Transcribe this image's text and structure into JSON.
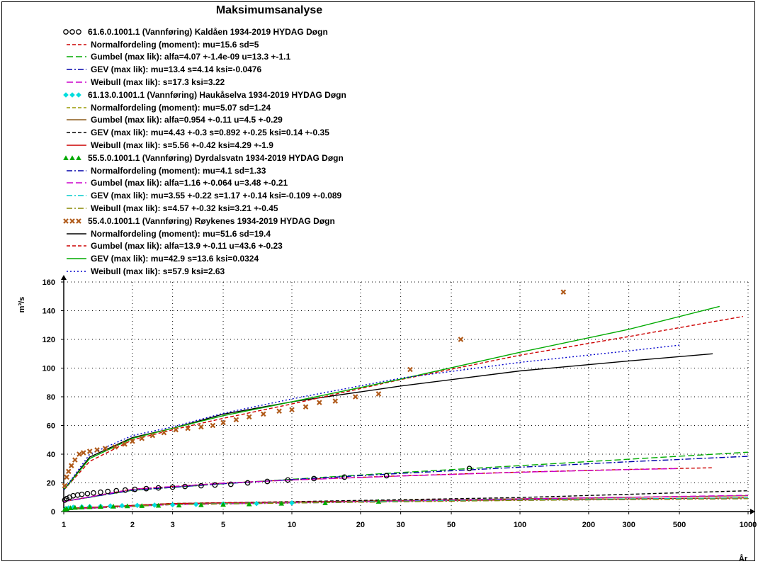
{
  "title": "Maksimumsanalyse",
  "legend": [
    {
      "text": "61.6.0.1001.1 (Vannføring) Kaldåen  1934-2019 HYDAG Døgn",
      "kind": "station",
      "marker": "circle",
      "color": "#000000"
    },
    {
      "text": "Normalfordeling (moment): mu=15.6    sd=5",
      "kind": "line",
      "dash": "dash",
      "color": "#cc0000"
    },
    {
      "text": "Gumbel (max lik): alfa=4.07   +-1.4e-09  u=13.3   +-1.1",
      "kind": "line",
      "dash": "longdash",
      "color": "#00aa00"
    },
    {
      "text": "GEV (max lik): mu=13.4    s=4.14    ksi=-0.0476",
      "kind": "line",
      "dash": "dashdot",
      "color": "#0000aa"
    },
    {
      "text": "Weibull (max lik): s=17.3    ksi=3.22",
      "kind": "line",
      "dash": "longdash",
      "color": "#cc00cc"
    },
    {
      "text": "61.13.0.1001.1 (Vannføring) Haukåselva  1934-2019 HYDAG Døgn",
      "kind": "station",
      "marker": "diamond",
      "color": "#00dddd"
    },
    {
      "text": "Normalfordeling (moment): mu=5.07    sd=1.24",
      "kind": "line",
      "dash": "dash",
      "color": "#999900"
    },
    {
      "text": "Gumbel (max lik): alfa=0.954  +-0.11   u=4.5   +-0.29",
      "kind": "line",
      "dash": "solid",
      "color": "#8b5a1a"
    },
    {
      "text": "GEV (max lik): mu=4.43   +-0.3    s=0.892  +-0.25   ksi=0.14   +-0.35",
      "kind": "line",
      "dash": "dash",
      "color": "#000000"
    },
    {
      "text": "Weibull (max lik): s=5.56   +-0.42   ksi=4.29   +-1.9",
      "kind": "line",
      "dash": "solid",
      "color": "#cc0000"
    },
    {
      "text": "55.5.0.1001.1 (Vannføring) Dyrdalsvatn  1934-2019 HYDAG Døgn",
      "kind": "station",
      "marker": "triangle",
      "color": "#00aa00"
    },
    {
      "text": "Normalfordeling (moment): mu=4.1     sd=1.33",
      "kind": "line",
      "dash": "dashdot",
      "color": "#0000aa"
    },
    {
      "text": "Gumbel (max lik): alfa=1.16  +-0.064  u=3.48   +-0.21",
      "kind": "line",
      "dash": "longdash",
      "color": "#cc00cc"
    },
    {
      "text": "GEV (max lik): mu=3.55   +-0.22   s=1.17   +-0.14   ksi=-0.109 +-0.089",
      "kind": "line",
      "dash": "dashdot",
      "color": "#00cccc"
    },
    {
      "text": "Weibull (max lik): s=4.57   +-0.32   ksi=3.21   +-0.45",
      "kind": "line",
      "dash": "dashdot",
      "color": "#888800"
    },
    {
      "text": "55.4.0.1001.1 (Vannføring) Røykenes  1934-2019 HYDAG Døgn",
      "kind": "station",
      "marker": "x",
      "color": "#b05a1a"
    },
    {
      "text": "Normalfordeling (moment): mu=51.6    sd=19.4",
      "kind": "line",
      "dash": "solid",
      "color": "#000000"
    },
    {
      "text": "Gumbel (max lik): alfa=13.9   +-0.11   u=43.6   +-0.23",
      "kind": "line",
      "dash": "dash",
      "color": "#cc0000"
    },
    {
      "text": "GEV (max lik): mu=42.9    s=13.6    ksi=0.0324",
      "kind": "line",
      "dash": "solid",
      "color": "#00aa00"
    },
    {
      "text": "Weibull (max lik): s=57.9    ksi=2.63",
      "kind": "line",
      "dash": "dot",
      "color": "#0000cc"
    }
  ],
  "chart_data": {
    "type": "scatter",
    "title": "Maksimumsanalyse",
    "ylabel": "m³/s",
    "xlabel": "År",
    "xscale": "log",
    "xlim": [
      1,
      1000
    ],
    "ylim": [
      0,
      160
    ],
    "xticks": [
      1,
      2,
      3,
      5,
      10,
      20,
      30,
      50,
      100,
      200,
      300,
      500,
      1000
    ],
    "xtick_labels": [
      "1",
      "2",
      "3",
      "5",
      "10",
      "20",
      "30",
      "50",
      "100",
      "200",
      "300",
      "500",
      "1000"
    ],
    "yticks": [
      0,
      20,
      40,
      60,
      80,
      100,
      120,
      140,
      160
    ],
    "grid": true,
    "legend_position": "top",
    "observations": [
      {
        "name": "61.6.0.1001.1 (Vannføring) Kaldåen  1934-2019 HYDAG Døgn",
        "marker": "circle",
        "color": "#000000",
        "x": [
          1.01,
          1.03,
          1.06,
          1.1,
          1.15,
          1.2,
          1.27,
          1.35,
          1.45,
          1.56,
          1.7,
          1.86,
          2.05,
          2.3,
          2.6,
          3.0,
          3.4,
          4.0,
          4.6,
          5.4,
          6.4,
          7.8,
          9.6,
          12.5,
          17.0,
          26.0,
          60.0
        ],
        "y": [
          8,
          9,
          10,
          11,
          11.5,
          12,
          12.5,
          13,
          13.5,
          14,
          14.5,
          15,
          15.5,
          16,
          16.5,
          17,
          17.5,
          18,
          18.5,
          19,
          20,
          21,
          22,
          23,
          24,
          25,
          30
        ]
      },
      {
        "name": "61.13.0.1001.1 (Vannføring) Haukåselva  1934-2019 HYDAG Døgn",
        "marker": "diamond",
        "color": "#00dddd",
        "x": [
          1.02,
          1.05,
          1.1,
          1.2,
          1.3,
          1.45,
          1.6,
          1.8,
          2.1,
          2.5,
          3.0,
          3.8,
          5.0,
          7.0,
          10.0
        ],
        "y": [
          2,
          2.5,
          3,
          3.3,
          3.5,
          3.7,
          3.9,
          4.1,
          4.3,
          4.5,
          4.7,
          5,
          5.3,
          5.6,
          6
        ]
      },
      {
        "name": "55.5.0.1001.1 (Vannføring) Dyrdalsvatn  1934-2019 HYDAG Døgn",
        "marker": "triangle",
        "color": "#00aa00",
        "x": [
          1.01,
          1.03,
          1.07,
          1.12,
          1.2,
          1.3,
          1.45,
          1.65,
          1.9,
          2.2,
          2.6,
          3.2,
          4.0,
          5.0,
          6.5,
          9.0,
          14.0,
          24.0
        ],
        "y": [
          1.5,
          2,
          2.5,
          2.8,
          3,
          3.2,
          3.4,
          3.6,
          3.8,
          4,
          4.2,
          4.4,
          4.6,
          4.9,
          5.2,
          5.6,
          6,
          7
        ]
      },
      {
        "name": "55.4.0.1001.1 (Vannføring) Røykenes  1934-2019 HYDAG Døgn",
        "marker": "x",
        "color": "#b05a1a",
        "x": [
          1.01,
          1.03,
          1.05,
          1.08,
          1.12,
          1.17,
          1.22,
          1.3,
          1.4,
          1.52,
          1.68,
          1.85,
          2.0,
          2.2,
          2.45,
          2.75,
          3.1,
          3.5,
          4.0,
          4.5,
          5.0,
          5.7,
          6.5,
          7.5,
          8.8,
          10.0,
          11.5,
          13.2,
          15.5,
          19.0,
          24.0,
          33.0,
          55.0,
          155.0
        ],
        "y": [
          18,
          24,
          28,
          32,
          36,
          40,
          41,
          42,
          43,
          44,
          45,
          47,
          49,
          51,
          53,
          55,
          57,
          58,
          59,
          60,
          62,
          64,
          66,
          68,
          70,
          71,
          73,
          76,
          77,
          80,
          82,
          99,
          120,
          153
        ]
      }
    ],
    "fits": [
      {
        "name": "Normalfordeling (moment) Kaldåen",
        "color": "#cc0000",
        "dash": "dash",
        "x": [
          1,
          2,
          5,
          10,
          30,
          100,
          300,
          700
        ],
        "y": [
          7,
          15.6,
          19.8,
          22.1,
          24.9,
          27.5,
          29.4,
          30.5
        ]
      },
      {
        "name": "Gumbel (max lik) Kaldåen",
        "color": "#00aa00",
        "dash": "longdash",
        "x": [
          1,
          2,
          5,
          10,
          30,
          100,
          300,
          1000
        ],
        "y": [
          7,
          14.8,
          19.4,
          22.5,
          27.2,
          32,
          36.5,
          41.4
        ]
      },
      {
        "name": "GEV (max lik) Kaldåen",
        "color": "#0000aa",
        "dash": "dashdot",
        "x": [
          1,
          2,
          5,
          10,
          30,
          100,
          300,
          1000
        ],
        "y": [
          7,
          14.9,
          19.4,
          22.3,
          26.6,
          30.9,
          34.7,
          38.5
        ]
      },
      {
        "name": "Weibull (max lik) Kaldåen",
        "color": "#cc00cc",
        "dash": "longdash",
        "x": [
          1,
          2,
          5,
          10,
          30,
          100,
          300,
          500
        ],
        "y": [
          7,
          15.5,
          19.8,
          22,
          24.8,
          27.4,
          29.3,
          30
        ]
      },
      {
        "name": "Normalfordeling (moment) Haukåselva",
        "color": "#999900",
        "dash": "dash",
        "x": [
          1,
          3,
          10,
          100,
          1000
        ],
        "y": [
          2,
          5.7,
          6.7,
          8.4,
          9.4
        ]
      },
      {
        "name": "Gumbel (max lik) Haukåselva",
        "color": "#8b5a1a",
        "dash": "solid",
        "x": [
          1,
          3,
          10,
          100,
          1000
        ],
        "y": [
          2,
          5.5,
          6.6,
          8.9,
          11
        ]
      },
      {
        "name": "GEV (max lik) Haukåselva",
        "color": "#000000",
        "dash": "dash",
        "x": [
          1,
          3,
          10,
          100,
          1000
        ],
        "y": [
          2,
          5.6,
          6.9,
          9.8,
          14.5
        ]
      },
      {
        "name": "Weibull (max lik) Haukåselva",
        "color": "#cc0000",
        "dash": "solid",
        "x": [
          1,
          3,
          10,
          100,
          1000
        ],
        "y": [
          2,
          5.6,
          6.6,
          8.2,
          9.6
        ]
      },
      {
        "name": "Normalfordeling (moment) Dyrdalsvatn",
        "color": "#0000aa",
        "dash": "dashdot",
        "x": [
          1,
          3,
          10,
          100,
          1000
        ],
        "y": [
          1.5,
          4.9,
          6,
          7.9,
          9
        ]
      },
      {
        "name": "Gumbel (max lik) Dyrdalsvatn",
        "color": "#cc00cc",
        "dash": "longdash",
        "x": [
          1,
          3,
          10,
          100,
          1000
        ],
        "y": [
          1.5,
          4.9,
          6.1,
          8.8,
          11.3
        ]
      },
      {
        "name": "GEV (max lik) Dyrdalsvatn",
        "color": "#00cccc",
        "dash": "dashdot",
        "x": [
          1,
          3,
          10,
          100,
          1000
        ],
        "y": [
          1.5,
          5,
          6.2,
          8.2,
          9.5
        ]
      },
      {
        "name": "Weibull (max lik) Dyrdalsvatn",
        "color": "#888800",
        "dash": "dashdot",
        "x": [
          1,
          3,
          10,
          100,
          1000
        ],
        "y": [
          1.5,
          4.9,
          6,
          7.8,
          9
        ]
      },
      {
        "name": "Normalfordeling (moment) Røykenes",
        "color": "#000000",
        "dash": "solid",
        "x": [
          1,
          1.3,
          2,
          3,
          5,
          10,
          30,
          100,
          300,
          700
        ],
        "y": [
          15,
          38,
          51.6,
          58,
          67.9,
          76.5,
          87.5,
          98,
          105,
          110
        ]
      },
      {
        "name": "Gumbel (max lik) Røykenes",
        "color": "#cc0000",
        "dash": "dash",
        "x": [
          1,
          1.3,
          2,
          3,
          5,
          10,
          30,
          100,
          300,
          950
        ],
        "y": [
          15,
          35,
          50,
          57,
          65,
          75,
          92,
          109,
          122,
          136
        ]
      },
      {
        "name": "GEV (max lik) Røykenes",
        "color": "#00aa00",
        "dash": "solid",
        "x": [
          1,
          1.3,
          2,
          3,
          5,
          10,
          30,
          100,
          300,
          750
        ],
        "y": [
          15,
          37,
          51,
          58,
          66.8,
          76.5,
          92.3,
          111,
          127,
          143
        ]
      },
      {
        "name": "Weibull (max lik) Røykenes",
        "color": "#0000cc",
        "dash": "dot",
        "x": [
          1,
          1.3,
          2,
          3,
          5,
          10,
          30,
          100,
          300,
          500
        ],
        "y": [
          15,
          40,
          53,
          59,
          68.5,
          78.5,
          93,
          104,
          112,
          116
        ]
      }
    ]
  }
}
